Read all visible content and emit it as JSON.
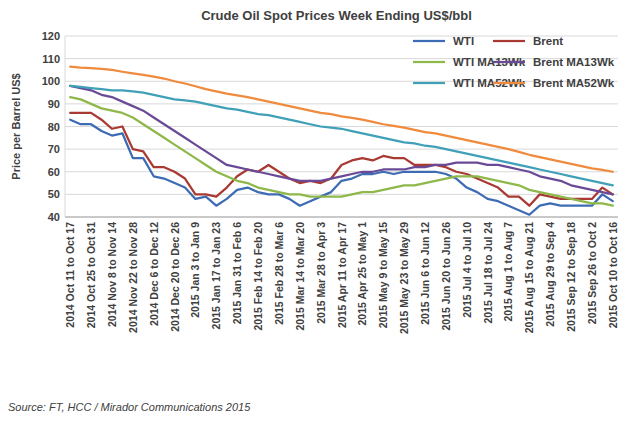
{
  "chart_data": {
    "type": "line",
    "title": "Crude Oil Spot Prices Week Ending US$/bbl",
    "y_label": "Price per Barrel US$",
    "source": "Source: FT, HCC / Mirador Communications 2015",
    "categories": [
      "2014 Oct 11 to Oct 17",
      null,
      "2014 Oct 25 to Oct 31",
      null,
      "2014 Nov 8 to Nov 14",
      null,
      "2014 Nov 22 to Nov 28",
      null,
      "2014 Dec 6 to Dec 12",
      null,
      "2014 Dec 20 to Dec 26",
      null,
      "2015 Jan 3 to Jan 9",
      null,
      "2015 Jan 17 to Jan 23",
      null,
      "2015 Jan 31 to Feb 6",
      null,
      "2015 Feb 14 to Feb 20",
      null,
      "2015 Feb 28 to Mar 6",
      null,
      "2015 Mar 14 to Mar 20",
      null,
      "2015 Mar 28 to Apr 3",
      null,
      "2015 Apr 11 to Apr 17",
      null,
      "2015 Apr 25 to May 1",
      null,
      "2015 May 9 to May 15",
      null,
      "2015 May 23 to May 29",
      null,
      "2015 Jun 6 to Jun 12",
      null,
      "2015 Jun 20 to Jun 26",
      null,
      "2015 Jul 4 to Jul 10",
      null,
      "2015 Jul 18 to Jul 24",
      null,
      "2015 Aug 1 to Aug 7",
      null,
      "2015 Aug 15 to Aug 21",
      null,
      "2015 Aug 29 to Sep 4",
      null,
      "2015 Sep 12 to Sep 18",
      null,
      "2015 Sep 26 to Oct 2",
      null,
      "2015 Oct 10 to Oct 16"
    ],
    "series": [
      {
        "name": "WTI",
        "color": "#3e6cb4",
        "values": [
          83,
          81,
          81,
          78,
          76,
          77,
          66,
          66,
          58,
          57,
          55,
          53,
          48,
          49,
          45,
          48,
          52,
          53,
          51,
          50,
          50,
          48,
          45,
          47,
          49,
          51,
          56,
          57,
          59,
          59,
          60,
          59,
          60,
          60,
          60,
          60,
          59,
          57,
          53,
          51,
          48,
          47,
          45,
          43,
          41,
          45,
          46,
          45,
          45,
          45,
          45,
          50,
          47
        ]
      },
      {
        "name": "Brent",
        "color": "#a93a33",
        "values": [
          86,
          86,
          86,
          83,
          79,
          80,
          70,
          69,
          62,
          62,
          60,
          57,
          50,
          50,
          49,
          53,
          58,
          61,
          60,
          63,
          60,
          57,
          55,
          56,
          55,
          57,
          63,
          65,
          66,
          65,
          67,
          66,
          66,
          63,
          63,
          63,
          62,
          60,
          59,
          57,
          55,
          53,
          49,
          49,
          45,
          50,
          49,
          48,
          48,
          48,
          48,
          53,
          50
        ]
      },
      {
        "name": "WTI MA13Wk",
        "color": "#8fb84a",
        "values": [
          93,
          92,
          90,
          88,
          87,
          86,
          84,
          81,
          78,
          75,
          72,
          69,
          66,
          63,
          60,
          58,
          56,
          55,
          53,
          52,
          51,
          50,
          50,
          49,
          49,
          49,
          49,
          50,
          51,
          51,
          52,
          53,
          54,
          54,
          55,
          56,
          57,
          58,
          58,
          58,
          57,
          56,
          55,
          54,
          52,
          51,
          50,
          49,
          48,
          47,
          46,
          46,
          45
        ]
      },
      {
        "name": "Brent MA13Wk",
        "color": "#6a4a96",
        "values": [
          98,
          97,
          96,
          94,
          93,
          91,
          89,
          87,
          84,
          81,
          78,
          75,
          72,
          69,
          66,
          63,
          62,
          61,
          60,
          59,
          58,
          57,
          56,
          56,
          56,
          57,
          58,
          59,
          60,
          60,
          61,
          61,
          61,
          62,
          62,
          63,
          63,
          64,
          64,
          64,
          63,
          63,
          62,
          61,
          60,
          58,
          57,
          56,
          54,
          53,
          52,
          51,
          50
        ]
      },
      {
        "name": "WTI MA52Wk",
        "color": "#3fa0b8",
        "values": [
          98,
          97.5,
          97,
          96.5,
          96,
          96,
          95.5,
          95,
          94,
          93,
          92,
          91.5,
          91,
          90,
          89,
          88,
          87.5,
          86.5,
          85.5,
          85,
          84,
          83,
          82,
          81,
          80,
          79.5,
          79,
          78,
          77,
          76,
          75,
          74,
          73,
          72.5,
          71.5,
          71,
          70,
          69,
          68,
          67,
          66,
          65,
          64,
          63,
          62,
          61,
          60,
          59,
          58,
          57,
          56,
          55,
          54
        ]
      },
      {
        "name": "Brent MA52Wk",
        "color": "#f08a3c",
        "values": [
          106.5,
          106,
          105.8,
          105.5,
          105,
          104.2,
          103.5,
          102.8,
          102,
          101.2,
          100,
          99,
          97.8,
          96.5,
          95.5,
          94.5,
          93.8,
          93,
          92,
          91,
          90,
          89,
          88,
          87,
          86,
          85.5,
          84.5,
          83.8,
          83,
          82,
          81,
          80.3,
          79.5,
          78.5,
          77.5,
          77,
          76,
          75,
          74,
          73,
          72,
          71,
          70,
          68.8,
          67.5,
          66.5,
          65.5,
          64.5,
          63.5,
          62.5,
          61.5,
          60.8,
          60
        ]
      }
    ],
    "ylim": [
      40,
      120
    ],
    "yticks": [
      40,
      50,
      60,
      70,
      80,
      90,
      100,
      110,
      120
    ],
    "grid": true,
    "legend": "upper right"
  }
}
